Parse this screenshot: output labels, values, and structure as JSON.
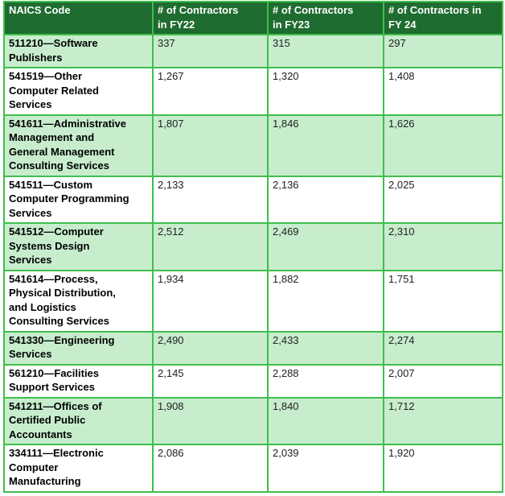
{
  "colors": {
    "header_bg": "#1E6C30",
    "banded_row_bg": "#C7EDCD",
    "plain_row_bg": "#FFFFFF",
    "border": "#3FBE4D",
    "header_text": "#FFFFFF",
    "body_text": "#212121"
  },
  "table": {
    "columns": [
      {
        "label": "NAICS Code"
      },
      {
        "label": "# of Contractors\nin FY22"
      },
      {
        "label": "# of Contractors\nin FY23"
      },
      {
        "label": "# of Contractors in\nFY 24"
      }
    ],
    "rows": [
      {
        "naics": "511210—Software\nPublishers",
        "fy22": "337",
        "fy23": "315",
        "fy24": "297"
      },
      {
        "naics": "541519—Other\nComputer Related\nServices",
        "fy22": "1,267",
        "fy23": "1,320",
        "fy24": "1,408"
      },
      {
        "naics": "541611—Administrative\nManagement and\nGeneral Management\nConsulting Services",
        "fy22": "1,807",
        "fy23": "1,846",
        "fy24": "1,626"
      },
      {
        "naics": "541511—Custom\nComputer Programming\nServices",
        "fy22": "2,133",
        "fy23": "2,136",
        "fy24": "2,025"
      },
      {
        "naics": "541512—Computer\nSystems Design\nServices",
        "fy22": "2,512",
        "fy23": "2,469",
        "fy24": "2,310"
      },
      {
        "naics": "541614—Process,\nPhysical Distribution,\nand Logistics\nConsulting Services",
        "fy22": "1,934",
        "fy23": "1,882",
        "fy24": "1,751"
      },
      {
        "naics": "541330—Engineering\nServices",
        "fy22": "2,490",
        "fy23": "2,433",
        "fy24": "2,274"
      },
      {
        "naics": "561210—Facilities\nSupport Services",
        "fy22": "2,145",
        "fy23": "2,288",
        "fy24": "2,007"
      },
      {
        "naics": "541211—Offices of\nCertified Public\nAccountants",
        "fy22": "1,908",
        "fy23": "1,840",
        "fy24": "1,712"
      },
      {
        "naics": "334111—Electronic\nComputer\nManufacturing",
        "fy22": "2,086",
        "fy23": "2,039",
        "fy24": "1,920"
      }
    ]
  }
}
